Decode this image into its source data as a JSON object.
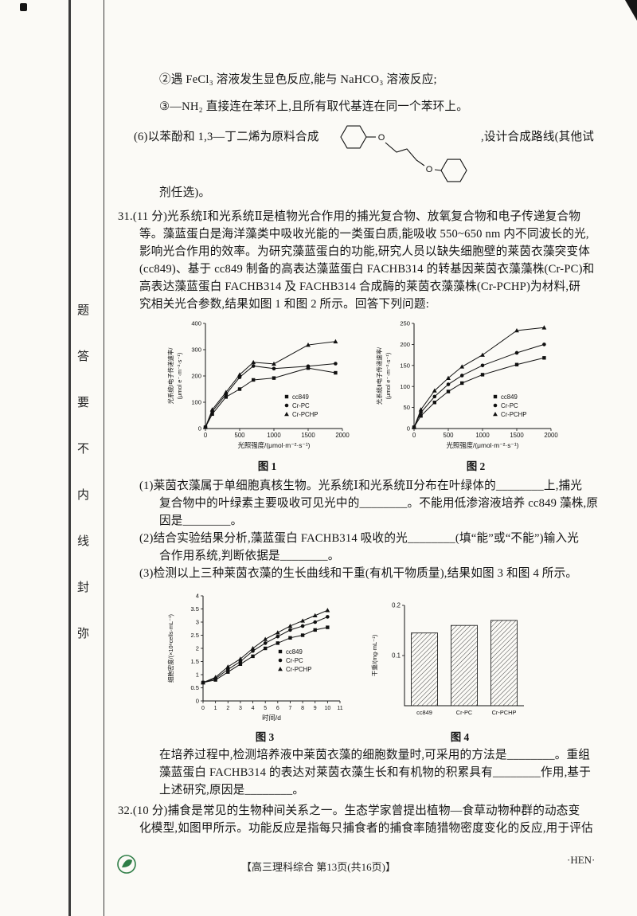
{
  "page": {
    "seal_text": [
      "题",
      "答",
      "要",
      "不",
      "内",
      "线",
      "封",
      "弥"
    ],
    "footer_center": "【高三理科综合 第13页(共16页)】",
    "footer_right": "·HEN·"
  },
  "intro": {
    "cond2": "②遇 FeCl₃ 溶液发生显色反应,能与 NaHCO₃ 溶液反应;",
    "cond3": "③—NH₂ 直接连在苯环上,且所有取代基连在同一个苯环上。",
    "q6_prefix": "(6)以苯酚和 1,3—丁二烯为原料合成",
    "q6_suffix": ",设计合成路线(其他试",
    "q6_cont": "剂任选)。",
    "o_label": "O"
  },
  "q31": {
    "stem": [
      "31.(11 分)光系统Ⅰ和光系统Ⅱ是植物光合作用的捕光复合物、放氧复合物和电子传递复合物",
      "等。藻蓝蛋白是海洋藻类中吸收光能的一类蛋白质,能吸收 550~650 nm 内不同波长的光,",
      "影响光合作用的效率。为研究藻蓝蛋白的功能,研究人员以缺失细胞壁的莱茵衣藻突变体",
      "(cc849)、基于 cc849 制备的高表达藻蓝蛋白 FACHB314 的转基因莱茵衣藻藻株(Cr-PC)和",
      "高表达藻蓝蛋白 FACHB314 及 FACHB314 合成酶的莱茵衣藻藻株(Cr-PCHP)为材料,研",
      "究相关光合参数,结果如图 1 和图 2 所示。回答下列问题:"
    ],
    "part1": [
      "(1)莱茵衣藻属于单细胞真核生物。光系统Ⅰ和光系统Ⅱ分布在叶绿体的________上,捕光",
      "复合物中的叶绿素主要吸收可见光中的________。不能用低渗溶液培养 cc849 藻株,原",
      "因是________。"
    ],
    "part2": [
      "(2)结合实验结果分析,藻蓝蛋白 FACHB314 吸收的光________(填“能”或“不能”)输入光",
      "合作用系统,判断依据是________。"
    ],
    "part3": "(3)检测以上三种莱茵衣藻的生长曲线和干重(有机干物质量),结果如图 3 和图 4 所示。",
    "tail": [
      "在培养过程中,检测培养液中莱茵衣藻的细胞数量时,可采用的方法是________。重组",
      "藻蓝蛋白 FACHB314 的表达对莱茵衣藻生长和有机物的积累具有________作用,基于",
      "上述研究,原因是________。"
    ]
  },
  "q32": {
    "lines": [
      "32.(10 分)捕食是常见的生物种间关系之一。生态学家曾提出植物—食草动物种群的动态变",
      "化模型,如图甲所示。功能反应是指每只捕食者的捕食率随猎物密度变化的反应,用于评估"
    ]
  },
  "chart_data": [
    {
      "id": "figure-1",
      "type": "line",
      "caption": "图 1",
      "xlabel": "光照强度/(μmol·m⁻²·s⁻¹)",
      "ylabel_lines": [
        "光系统Ⅰ电子传递速率/",
        "(μmol e⁻·m⁻²·s⁻¹)"
      ],
      "xlim": [
        0,
        2000
      ],
      "ylim": [
        0,
        400
      ],
      "xticks": [
        0,
        500,
        1000,
        1500,
        2000
      ],
      "yticks": [
        0,
        100,
        200,
        300,
        400
      ],
      "legend_position": "inside-right",
      "series": [
        {
          "name": "cc849",
          "marker": "square",
          "x": [
            0,
            100,
            300,
            500,
            700,
            1000,
            1500,
            1900
          ],
          "y": [
            5,
            55,
            120,
            150,
            185,
            192,
            230,
            212
          ]
        },
        {
          "name": "Cr-PC",
          "marker": "circle",
          "x": [
            0,
            100,
            300,
            500,
            700,
            1000,
            1500,
            1900
          ],
          "y": [
            5,
            65,
            130,
            195,
            238,
            228,
            237,
            247
          ]
        },
        {
          "name": "Cr-PCHP",
          "marker": "triangle",
          "x": [
            0,
            100,
            300,
            500,
            700,
            1000,
            1500,
            1900
          ],
          "y": [
            5,
            72,
            138,
            205,
            252,
            246,
            318,
            331
          ]
        }
      ]
    },
    {
      "id": "figure-2",
      "type": "line",
      "caption": "图 2",
      "xlabel": "光照强度/(μmol·m⁻²·s⁻¹)",
      "ylabel_lines": [
        "光系统Ⅱ电子传递速率/",
        "(μmol e⁻·m⁻²·s⁻¹)"
      ],
      "xlim": [
        0,
        2000
      ],
      "ylim": [
        0,
        250
      ],
      "xticks": [
        0,
        500,
        1000,
        1500,
        2000
      ],
      "yticks": [
        0,
        50,
        100,
        150,
        200,
        250
      ],
      "legend_position": "inside-right",
      "series": [
        {
          "name": "cc849",
          "marker": "square",
          "x": [
            0,
            100,
            300,
            500,
            700,
            1000,
            1500,
            1900
          ],
          "y": [
            3,
            30,
            62,
            88,
            108,
            128,
            152,
            168
          ]
        },
        {
          "name": "Cr-PC",
          "marker": "circle",
          "x": [
            0,
            100,
            300,
            500,
            700,
            1000,
            1500,
            1900
          ],
          "y": [
            3,
            38,
            76,
            105,
            126,
            150,
            180,
            200
          ]
        },
        {
          "name": "Cr-PCHP",
          "marker": "triangle",
          "x": [
            0,
            100,
            300,
            500,
            700,
            1000,
            1500,
            1900
          ],
          "y": [
            3,
            45,
            90,
            120,
            147,
            175,
            233,
            240
          ]
        }
      ]
    },
    {
      "id": "figure-3",
      "type": "line",
      "caption": "图 3",
      "xlabel": "时间/d",
      "ylabel_lines": [
        "细胞密度/(×10⁶cells·mL⁻¹)"
      ],
      "xlim": [
        0,
        11
      ],
      "ylim": [
        0,
        4
      ],
      "xticks": [
        0,
        1,
        2,
        3,
        4,
        5,
        6,
        7,
        8,
        9,
        10,
        11
      ],
      "yticks": [
        0,
        0.5,
        1,
        1.5,
        2,
        2.5,
        3,
        3.5,
        4
      ],
      "legend_position": "inside-right",
      "series": [
        {
          "name": "cc849",
          "marker": "square",
          "x": [
            0,
            1,
            2,
            3,
            4,
            5,
            6,
            7,
            8,
            9,
            10
          ],
          "y": [
            0.7,
            0.8,
            1.1,
            1.4,
            1.7,
            2.0,
            2.2,
            2.4,
            2.5,
            2.7,
            2.8
          ]
        },
        {
          "name": "Cr-PC",
          "marker": "circle",
          "x": [
            0,
            1,
            2,
            3,
            4,
            5,
            6,
            7,
            8,
            9,
            10
          ],
          "y": [
            0.7,
            0.85,
            1.2,
            1.5,
            1.9,
            2.2,
            2.45,
            2.7,
            2.85,
            3.0,
            3.2
          ]
        },
        {
          "name": "Cr-PCHP",
          "marker": "triangle",
          "x": [
            0,
            1,
            2,
            3,
            4,
            5,
            6,
            7,
            8,
            9,
            10
          ],
          "y": [
            0.7,
            0.9,
            1.3,
            1.6,
            2.0,
            2.35,
            2.6,
            2.85,
            3.05,
            3.25,
            3.45
          ]
        }
      ]
    },
    {
      "id": "figure-4",
      "type": "bar",
      "caption": "图 4",
      "ylabel_lines": [
        "干重/(mg·mL⁻¹)"
      ],
      "categories": [
        "cc849",
        "Cr-PC",
        "Cr-PCHP"
      ],
      "values": [
        0.145,
        0.16,
        0.17
      ],
      "ylim": [
        0,
        0.2
      ],
      "yticks": [
        0.1,
        0.2
      ]
    }
  ]
}
